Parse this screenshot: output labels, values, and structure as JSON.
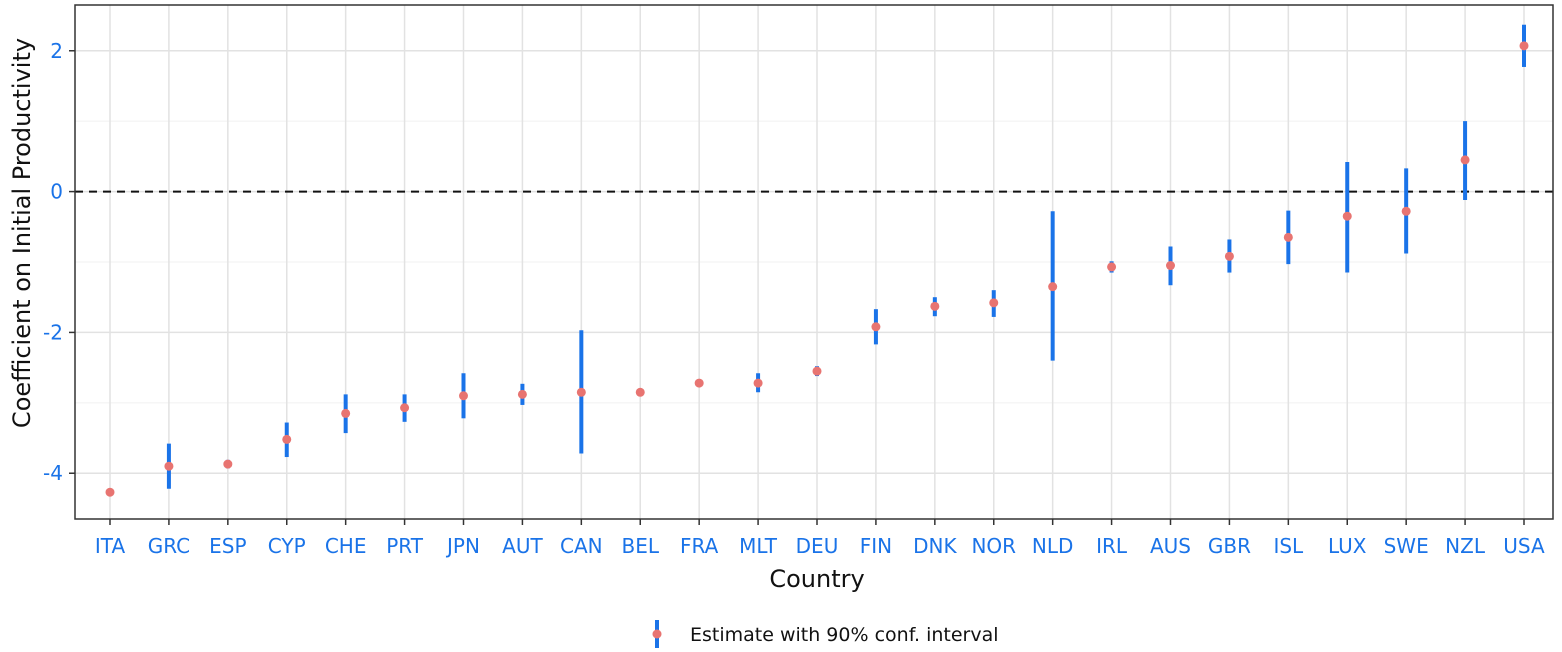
{
  "chart_data": {
    "type": "scatter",
    "xlabel": "Country",
    "ylabel": "Coefficient on Initial Productivity",
    "ylim": [
      -4.65,
      2.65
    ],
    "yticks": [
      -4,
      -2,
      0,
      2
    ],
    "ytick_labels": [
      "-4",
      "-2",
      "0",
      "2"
    ],
    "reference_line": {
      "y": 0,
      "style": "dashed"
    },
    "grid": true,
    "legend_position": "bottom",
    "colors": {
      "interval": "#1a73e8",
      "point": "#e87471",
      "ticks": "#1a73e8"
    },
    "categories": [
      "ITA",
      "GRC",
      "ESP",
      "CYP",
      "CHE",
      "PRT",
      "JPN",
      "AUT",
      "CAN",
      "BEL",
      "FRA",
      "MLT",
      "DEU",
      "FIN",
      "DNK",
      "NOR",
      "NLD",
      "IRL",
      "AUS",
      "GBR",
      "ISL",
      "LUX",
      "SWE",
      "NZL",
      "USA"
    ],
    "series": [
      {
        "name": "Estimate with 90% conf. interval",
        "values": [
          -4.27,
          -3.9,
          -3.87,
          -3.52,
          -3.15,
          -3.07,
          -2.9,
          -2.88,
          -2.85,
          -2.85,
          -2.72,
          -2.72,
          -2.55,
          -1.92,
          -1.63,
          -1.58,
          -1.35,
          -1.07,
          -1.05,
          -0.92,
          -0.65,
          -0.35,
          -0.28,
          0.45,
          2.07
        ],
        "lower": [
          -4.32,
          -4.22,
          -3.93,
          -3.77,
          -3.43,
          -3.27,
          -3.22,
          -3.03,
          -3.72,
          -2.9,
          -2.77,
          -2.85,
          -2.62,
          -2.17,
          -1.77,
          -1.78,
          -2.4,
          -1.15,
          -1.33,
          -1.15,
          -1.03,
          -1.15,
          -0.88,
          -0.12,
          1.77
        ],
        "upper": [
          -4.22,
          -3.58,
          -3.81,
          -3.28,
          -2.88,
          -2.88,
          -2.58,
          -2.73,
          -1.97,
          -2.8,
          -2.67,
          -2.58,
          -2.48,
          -1.67,
          -1.5,
          -1.4,
          -0.28,
          -0.99,
          -0.78,
          -0.68,
          -0.27,
          0.42,
          0.33,
          1.0,
          2.37
        ]
      }
    ]
  }
}
